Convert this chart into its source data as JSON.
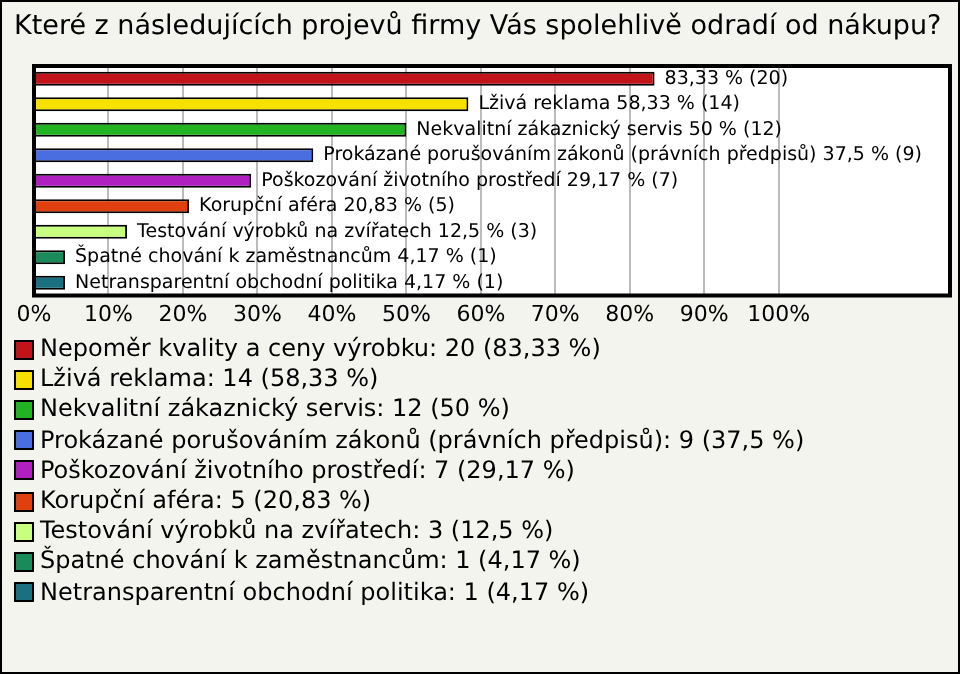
{
  "chart_data": {
    "type": "bar",
    "orientation": "horizontal",
    "stacked": true,
    "title": "Které z následujících projevů firmy Vás spolehlivě odradí od nákupu?",
    "categories": [
      null,
      null,
      null,
      null,
      null,
      null,
      null,
      null,
      null
    ],
    "series": [
      {
        "name": "Nepoměr kvality a ceny výrobku: 20 (83,33 %)",
        "color": "#c0141a",
        "values": [
          83.33,
          null,
          null,
          null,
          null,
          null,
          null,
          null,
          null
        ],
        "value_labels": [
          "83,33 % (20)",
          null,
          null,
          null,
          null,
          null,
          null,
          null,
          null
        ]
      },
      {
        "name": "Lživá reklama: 14 (58,33 %)",
        "color": "#f5e000",
        "values": [
          null,
          58.33,
          null,
          null,
          null,
          null,
          null,
          null,
          null
        ],
        "value_labels": [
          null,
          "Lživá reklama 58,33 % (14)",
          null,
          null,
          null,
          null,
          null,
          null,
          null
        ]
      },
      {
        "name": "Nekvalitní zákaznický servis: 12 (50 %)",
        "color": "#22b322",
        "values": [
          null,
          null,
          50,
          null,
          null,
          null,
          null,
          null,
          null
        ],
        "value_labels": [
          null,
          null,
          "Nekvalitní zákaznický servis 50 % (12)",
          null,
          null,
          null,
          null,
          null,
          null
        ]
      },
      {
        "name": "Prokázané porušováním zákonů (právních předpisů): 9 (37,5 %)",
        "color": "#4a6ee0",
        "values": [
          null,
          null,
          null,
          37.5,
          null,
          null,
          null,
          null,
          null
        ],
        "value_labels": [
          null,
          null,
          null,
          "Prokázané porušováním zákonů (právních předpisů) 37,5 % (9)",
          null,
          null,
          null,
          null,
          null
        ]
      },
      {
        "name": "Poškozování životního prostředí: 7 (29,17 %)",
        "color": "#b020c0",
        "values": [
          null,
          null,
          null,
          null,
          29.17,
          null,
          null,
          null,
          null
        ],
        "value_labels": [
          null,
          null,
          null,
          null,
          "Poškozování životního prostředí 29,17 % (7)",
          null,
          null,
          null,
          null
        ]
      },
      {
        "name": "Korupční aféra: 5 (20,83 %)",
        "color": "#e04010",
        "values": [
          null,
          null,
          null,
          null,
          null,
          20.83,
          null,
          null,
          null
        ],
        "value_labels": [
          null,
          null,
          null,
          null,
          null,
          "Korupční aféra 20,83 % (5)",
          null,
          null,
          null
        ]
      },
      {
        "name": "Testování výrobků na zvířatech: 3 (12,5 %)",
        "color": "#c8ff80",
        "values": [
          null,
          null,
          null,
          null,
          null,
          null,
          12.5,
          null,
          null
        ],
        "value_labels": [
          null,
          null,
          null,
          null,
          null,
          null,
          "Testování výrobků na zvířatech 12,5 % (3)",
          null,
          null
        ]
      },
      {
        "name": "Špatné chování k zaměstnancům: 1 (4,17 %)",
        "color": "#1a8a5a",
        "values": [
          null,
          null,
          null,
          null,
          null,
          null,
          null,
          4.17,
          null
        ],
        "value_labels": [
          null,
          null,
          null,
          null,
          null,
          null,
          null,
          "Špatné chování k zaměstnancům 4,17 % (1)",
          null
        ]
      },
      {
        "name": "Netransparentní obchodní politika: 1 (4,17 %)",
        "color": "#1a7080",
        "values": [
          null,
          null,
          null,
          null,
          null,
          null,
          null,
          null,
          4.17
        ],
        "value_labels": [
          null,
          null,
          null,
          null,
          null,
          null,
          null,
          null,
          "Netransparentní obchodní politika 4,17 % (1)"
        ]
      }
    ],
    "xlim": [
      0,
      123
    ],
    "xticks": [
      {
        "value": 0,
        "label": "0%"
      },
      {
        "value": 10,
        "label": "10%"
      },
      {
        "value": 20,
        "label": "20%"
      },
      {
        "value": 30,
        "label": "30%"
      },
      {
        "value": 40,
        "label": "40%"
      },
      {
        "value": 50,
        "label": "50%"
      },
      {
        "value": 60,
        "label": "60%"
      },
      {
        "value": 70,
        "label": "70%"
      },
      {
        "value": 80,
        "label": "80%"
      },
      {
        "value": 90,
        "label": "90%"
      },
      {
        "value": 100,
        "label": "100%"
      }
    ],
    "grid": "x",
    "legend": "bottom",
    "tick_labels": "x"
  }
}
